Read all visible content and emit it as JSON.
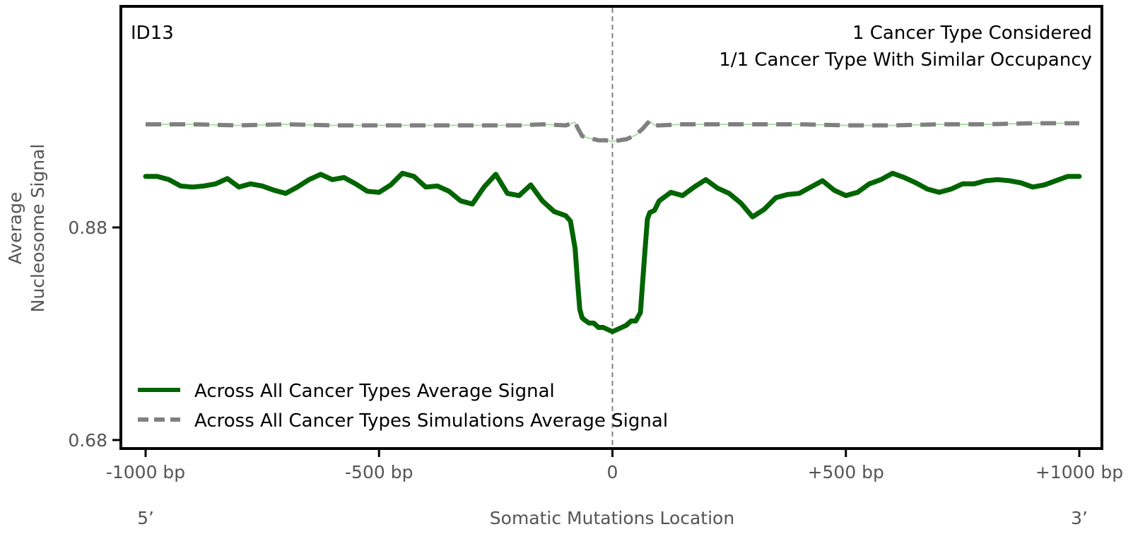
{
  "chart_data": {
    "type": "line",
    "panel_label": "ID13",
    "annotations": [
      "1 Cancer Type Considered",
      "1/1 Cancer Type With Similar Occupancy"
    ],
    "xlabel": "Somatic Mutations Location",
    "ylabel_lines": [
      "Average",
      "Nucleosome Signal"
    ],
    "x_end_labels": {
      "left": "5’",
      "right": "3’"
    },
    "xlim": [
      -1000,
      1000
    ],
    "ylim": [
      0.672,
      1.088
    ],
    "x_ticks": [
      {
        "value": -1000,
        "label": "-1000 bp"
      },
      {
        "value": -500,
        "label": "-500 bp"
      },
      {
        "value": 0,
        "label": "0"
      },
      {
        "value": 500,
        "label": "+500 bp"
      },
      {
        "value": 1000,
        "label": "+1000 bp"
      }
    ],
    "y_ticks": [
      {
        "value": 0.68,
        "label": "0.68"
      },
      {
        "value": 0.88,
        "label": "0.88"
      }
    ],
    "center_line": {
      "x": 0,
      "style": "dashed",
      "color": "#808080"
    },
    "legend": {
      "placement": "lower-left"
    },
    "series": [
      {
        "name": "Across All Cancer Types Average Signal",
        "color": "#006400",
        "style": "solid",
        "x": [
          -1000,
          -975,
          -950,
          -925,
          -900,
          -875,
          -850,
          -825,
          -800,
          -775,
          -750,
          -725,
          -700,
          -675,
          -650,
          -625,
          -600,
          -575,
          -550,
          -525,
          -500,
          -475,
          -450,
          -425,
          -400,
          -375,
          -350,
          -325,
          -300,
          -275,
          -250,
          -225,
          -200,
          -175,
          -150,
          -125,
          -100,
          -90,
          -80,
          -75,
          -70,
          -65,
          -60,
          -50,
          -40,
          -30,
          -20,
          -10,
          0,
          10,
          20,
          30,
          40,
          50,
          60,
          65,
          70,
          75,
          80,
          90,
          100,
          125,
          150,
          175,
          200,
          225,
          250,
          275,
          300,
          325,
          350,
          375,
          400,
          425,
          450,
          475,
          500,
          525,
          550,
          575,
          600,
          625,
          650,
          675,
          700,
          725,
          750,
          775,
          800,
          825,
          850,
          875,
          900,
          925,
          950,
          975,
          1000
        ],
        "values": [
          0.928,
          0.928,
          0.925,
          0.919,
          0.918,
          0.919,
          0.921,
          0.926,
          0.918,
          0.921,
          0.919,
          0.915,
          0.912,
          0.918,
          0.925,
          0.93,
          0.925,
          0.927,
          0.921,
          0.914,
          0.913,
          0.92,
          0.931,
          0.928,
          0.918,
          0.919,
          0.914,
          0.905,
          0.902,
          0.918,
          0.93,
          0.912,
          0.91,
          0.92,
          0.905,
          0.895,
          0.891,
          0.886,
          0.86,
          0.83,
          0.803,
          0.795,
          0.793,
          0.79,
          0.79,
          0.786,
          0.786,
          0.784,
          0.782,
          0.784,
          0.786,
          0.788,
          0.792,
          0.792,
          0.8,
          0.83,
          0.86,
          0.888,
          0.894,
          0.896,
          0.905,
          0.913,
          0.91,
          0.918,
          0.925,
          0.917,
          0.912,
          0.903,
          0.89,
          0.897,
          0.908,
          0.911,
          0.912,
          0.918,
          0.924,
          0.915,
          0.91,
          0.913,
          0.921,
          0.925,
          0.931,
          0.927,
          0.922,
          0.916,
          0.913,
          0.916,
          0.921,
          0.921,
          0.924,
          0.925,
          0.924,
          0.922,
          0.918,
          0.92,
          0.924,
          0.928,
          0.928
        ]
      },
      {
        "name": "Across All Cancer Types Simulations Average Signal",
        "color": "#808080",
        "style": "dashed",
        "x": [
          -1000,
          -900,
          -800,
          -700,
          -600,
          -500,
          -400,
          -300,
          -200,
          -150,
          -100,
          -80,
          -75,
          -65,
          -50,
          -30,
          -15,
          0,
          15,
          30,
          50,
          65,
          75,
          80,
          90,
          100,
          150,
          200,
          300,
          400,
          500,
          600,
          700,
          800,
          900,
          1000
        ],
        "values": [
          0.977,
          0.977,
          0.976,
          0.977,
          0.976,
          0.976,
          0.976,
          0.976,
          0.976,
          0.977,
          0.976,
          0.979,
          0.974,
          0.966,
          0.964,
          0.962,
          0.962,
          0.961,
          0.962,
          0.963,
          0.967,
          0.973,
          0.978,
          0.98,
          0.976,
          0.976,
          0.977,
          0.977,
          0.977,
          0.977,
          0.976,
          0.976,
          0.977,
          0.977,
          0.978,
          0.978
        ]
      }
    ]
  }
}
